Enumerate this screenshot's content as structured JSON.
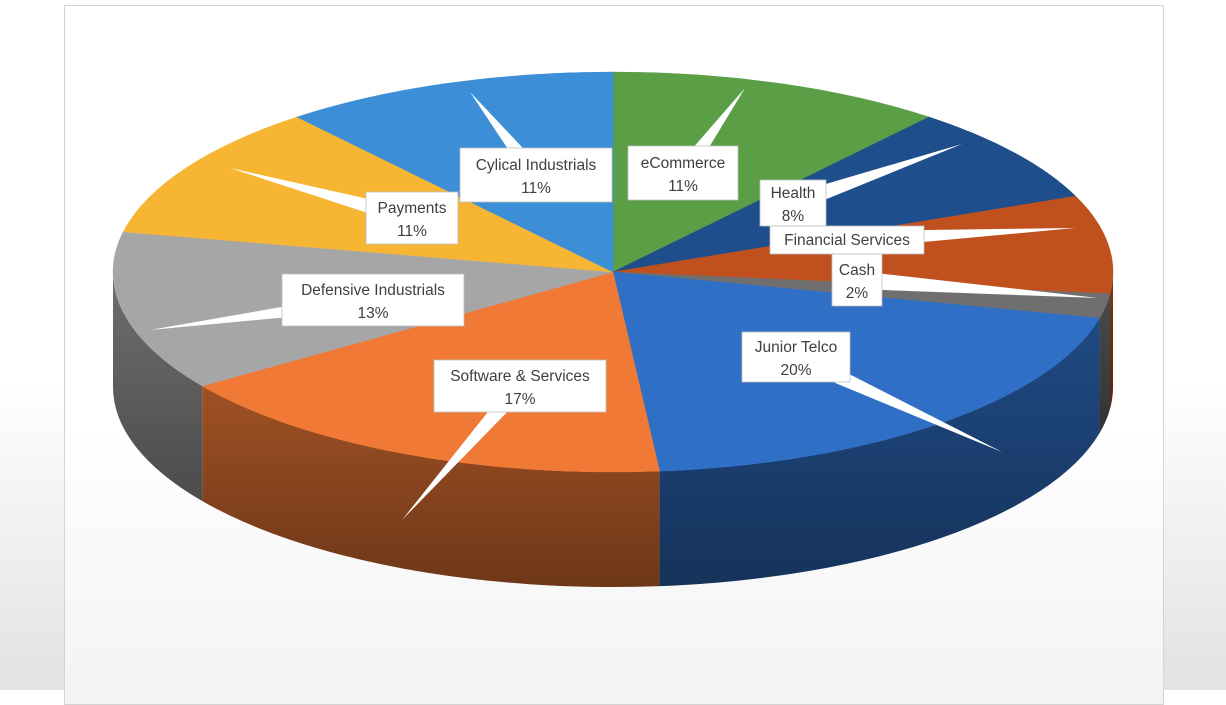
{
  "chart_data": {
    "type": "pie",
    "style": "3d-exploded-labels-with-callouts",
    "slices": [
      {
        "label": "eCommerce",
        "value": 11,
        "value_label": "11%",
        "color": "#5a9e45"
      },
      {
        "label": "Health",
        "value": 8,
        "value_label": "8%",
        "color": "#1f4e8c"
      },
      {
        "label": "Financial Services",
        "value": 8,
        "value_label": "",
        "color": "#c0511f"
      },
      {
        "label": "Cash",
        "value": 2,
        "value_label": "2%",
        "color": "#6f6f6f"
      },
      {
        "label": "Junior Telco",
        "value": 20,
        "value_label": "20%",
        "color": "#2f6fc6"
      },
      {
        "label": "Software & Services",
        "value": 17,
        "value_label": "17%",
        "color": "#f07a35"
      },
      {
        "label": "Defensive Industrials",
        "value": 13,
        "value_label": "13%",
        "color": "#a6a6a6"
      },
      {
        "label": "Payments",
        "value": 11,
        "value_label": "11%",
        "color": "#f6b633"
      },
      {
        "label": "Cylical Industrials",
        "value": 11,
        "value_label": "11%",
        "color": "#3c8fd6"
      }
    ],
    "start_angle_deg": 0,
    "direction": "clockwise"
  }
}
